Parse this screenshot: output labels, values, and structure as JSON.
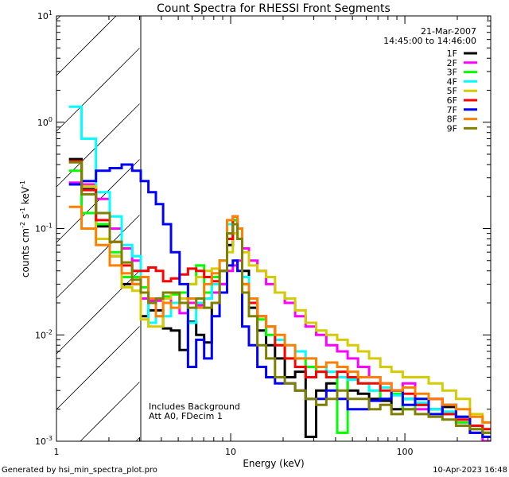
{
  "chart_data": {
    "type": "line",
    "title": "Count Spectra for RHESSI Front Segments",
    "xlabel": "Energy (keV)",
    "ylabel": "counts cm",
    "ylabel_parts": [
      "counts cm",
      "-2",
      " s",
      "-1",
      " keV",
      "-1"
    ],
    "xscale": "log",
    "yscale": "log",
    "xlim": [
      1,
      311
    ],
    "ylim": [
      0.001,
      10
    ],
    "x_ticks": [
      {
        "value": 1,
        "label": "1"
      },
      {
        "value": 10,
        "label": "10"
      },
      {
        "value": 100,
        "label": "100"
      }
    ],
    "y_ticks": [
      {
        "value": 10,
        "base": "10",
        "exp": "1"
      },
      {
        "value": 1,
        "base": "10",
        "exp": "0"
      },
      {
        "value": 0.1,
        "base": "10",
        "exp": "-1"
      },
      {
        "value": 0.01,
        "base": "10",
        "exp": "-2"
      },
      {
        "value": 0.001,
        "base": "10",
        "exp": "-3"
      }
    ],
    "shaded_region_upper_keV": 3,
    "legend_placement": "top-right",
    "date": "21-Mar-2007",
    "time_range": "14:45:00 to 14:46:00",
    "annotations": [
      "Includes Background",
      "Att A0, FDecim 1"
    ],
    "energy": [
      1.27,
      1.53,
      1.86,
      2.2,
      2.55,
      2.9,
      3.2,
      3.55,
      3.9,
      4.3,
      4.8,
      5.4,
      6.0,
      6.7,
      7.4,
      8.2,
      9.1,
      10,
      10.6,
      11.3,
      12,
      13.5,
      15,
      17,
      19,
      22,
      25,
      29,
      33,
      38,
      44,
      50,
      58,
      67,
      78,
      90,
      105,
      125,
      150,
      180,
      215,
      260,
      300
    ],
    "series": [
      {
        "name": "1F",
        "color": "#000000",
        "values": [
          0.45,
          0.235,
          0.105,
          0.055,
          0.03,
          0.03,
          0.015,
          0.017,
          0.017,
          0.0115,
          0.011,
          0.0072,
          0.0133,
          0.01,
          0.0085,
          0.02,
          0.03,
          0.07,
          0.12,
          0.1,
          0.04,
          0.018,
          0.011,
          0.008,
          0.006,
          0.004,
          0.0045,
          0.0011,
          0.003,
          0.0035,
          0.004,
          0.003,
          0.0028,
          0.0025,
          0.0024,
          0.002,
          0.0025,
          0.0022,
          0.002,
          0.0021,
          0.0017,
          0.0014,
          0.0012
        ]
      },
      {
        "name": "2F",
        "color": "#ff00ff",
        "values": [
          0.27,
          0.26,
          0.19,
          0.1,
          0.065,
          0.05,
          0.022,
          0.021,
          0.021,
          0.022,
          0.02,
          0.016,
          0.02,
          0.019,
          0.022,
          0.025,
          0.03,
          0.04,
          0.045,
          0.05,
          0.065,
          0.05,
          0.04,
          0.03,
          0.025,
          0.02,
          0.015,
          0.012,
          0.01,
          0.008,
          0.007,
          0.006,
          0.005,
          0.004,
          0.0035,
          0.003,
          0.0035,
          0.002,
          0.0025,
          0.0018,
          0.0015,
          0.0012,
          0.001
        ]
      },
      {
        "name": "3F",
        "color": "#00ff00",
        "values": [
          0.35,
          0.14,
          0.11,
          0.06,
          0.035,
          0.035,
          0.028,
          0.022,
          0.022,
          0.023,
          0.024,
          0.025,
          0.03,
          0.045,
          0.025,
          0.035,
          0.05,
          0.09,
          0.12,
          0.08,
          0.03,
          0.02,
          0.014,
          0.01,
          0.008,
          0.006,
          0.006,
          0.005,
          0.0045,
          0.004,
          0.0012,
          0.004,
          0.0035,
          0.003,
          0.0025,
          0.0028,
          0.002,
          0.0025,
          0.002,
          0.0018,
          0.0015,
          0.0013,
          0.0011
        ]
      },
      {
        "name": "4F",
        "color": "#00ffff",
        "values": [
          1.4,
          0.7,
          0.22,
          0.13,
          0.07,
          0.055,
          0.035,
          0.013,
          0.015,
          0.015,
          0.02,
          0.022,
          0.013,
          0.02,
          0.022,
          0.03,
          0.05,
          0.11,
          0.13,
          0.1,
          0.035,
          0.02,
          0.015,
          0.012,
          0.009,
          0.008,
          0.007,
          0.006,
          0.005,
          0.0045,
          0.004,
          0.0038,
          0.0035,
          0.003,
          0.0032,
          0.0027,
          0.0025,
          0.0023,
          0.002,
          0.0019,
          0.0017,
          0.0014,
          0.0012
        ]
      },
      {
        "name": "5F",
        "color": "#d4cc00",
        "values": [
          0.42,
          0.25,
          0.08,
          0.055,
          0.028,
          0.026,
          0.014,
          0.012,
          0.012,
          0.022,
          0.025,
          0.022,
          0.03,
          0.035,
          0.04,
          0.042,
          0.04,
          0.06,
          0.09,
          0.08,
          0.06,
          0.045,
          0.04,
          0.035,
          0.025,
          0.022,
          0.017,
          0.013,
          0.011,
          0.01,
          0.009,
          0.008,
          0.007,
          0.006,
          0.005,
          0.0045,
          0.004,
          0.004,
          0.0035,
          0.003,
          0.0025,
          0.0018,
          0.0015
        ]
      },
      {
        "name": "6F",
        "color": "#ff0000",
        "values": [
          0.43,
          0.23,
          0.12,
          0.075,
          0.045,
          0.04,
          0.04,
          0.043,
          0.04,
          0.032,
          0.034,
          0.037,
          0.042,
          0.04,
          0.035,
          0.032,
          0.04,
          0.08,
          0.13,
          0.1,
          0.03,
          0.02,
          0.015,
          0.012,
          0.008,
          0.006,
          0.005,
          0.004,
          0.0045,
          0.004,
          0.0045,
          0.004,
          0.0035,
          0.0035,
          0.003,
          0.003,
          0.0028,
          0.0022,
          0.0025,
          0.0018,
          0.0016,
          0.0014,
          0.0013
        ]
      },
      {
        "name": "7F",
        "color": "#0000ff",
        "values": [
          0.26,
          0.28,
          0.35,
          0.37,
          0.4,
          0.35,
          0.28,
          0.22,
          0.17,
          0.11,
          0.06,
          0.03,
          0.005,
          0.009,
          0.006,
          0.015,
          0.025,
          0.045,
          0.05,
          0.04,
          0.012,
          0.008,
          0.005,
          0.004,
          0.0035,
          0.0035,
          0.003,
          0.0025,
          0.0025,
          0.003,
          0.0025,
          0.002,
          0.002,
          0.0024,
          0.0025,
          0.003,
          0.0022,
          0.0025,
          0.0018,
          0.0022,
          0.0017,
          0.0012,
          0.0011
        ]
      },
      {
        "name": "8F",
        "color": "#ff8000",
        "values": [
          0.16,
          0.1,
          0.07,
          0.045,
          0.038,
          0.03,
          0.035,
          0.022,
          0.015,
          0.02,
          0.018,
          0.02,
          0.022,
          0.018,
          0.03,
          0.038,
          0.05,
          0.12,
          0.13,
          0.1,
          0.03,
          0.022,
          0.015,
          0.012,
          0.01,
          0.008,
          0.006,
          0.006,
          0.005,
          0.0055,
          0.005,
          0.0045,
          0.004,
          0.004,
          0.0035,
          0.003,
          0.0032,
          0.0028,
          0.0025,
          0.0022,
          0.002,
          0.0017,
          0.0015
        ]
      },
      {
        "name": "9F",
        "color": "#808000",
        "values": [
          0.42,
          0.21,
          0.14,
          0.075,
          0.048,
          0.033,
          0.025,
          0.02,
          0.022,
          0.025,
          0.025,
          0.02,
          0.018,
          0.022,
          0.018,
          0.02,
          0.04,
          0.09,
          0.11,
          0.08,
          0.025,
          0.015,
          0.008,
          0.006,
          0.004,
          0.0035,
          0.003,
          0.0025,
          0.0022,
          0.0025,
          0.003,
          0.0025,
          0.0025,
          0.002,
          0.0022,
          0.0018,
          0.002,
          0.0018,
          0.0017,
          0.0016,
          0.0014,
          0.0013,
          0.0012
        ]
      }
    ]
  },
  "footer": {
    "generated_by": "Generated by hsi_min_spectra_plot.pro",
    "timestamp": "10-Apr-2023 16:48"
  }
}
